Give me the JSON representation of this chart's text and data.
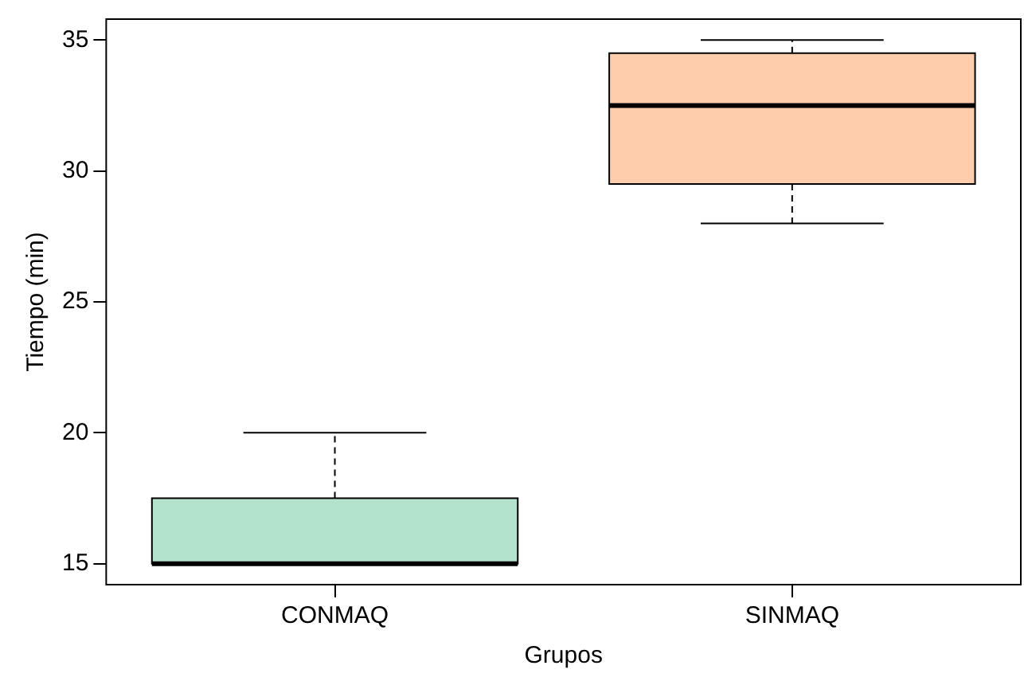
{
  "chart_data": {
    "type": "box",
    "xlabel": "Grupos",
    "ylabel": "Tiempo (min)",
    "categories": [
      "CONMAQ",
      "SINMAQ"
    ],
    "colors": [
      "#b3e2cd",
      "#fdcdac"
    ],
    "boxes": [
      {
        "low": 15,
        "q1": 15,
        "median": 15,
        "q3": 17.5,
        "high": 20
      },
      {
        "low": 28,
        "q1": 29.5,
        "median": 32.5,
        "q3": 34.5,
        "high": 35
      }
    ],
    "ylim": [
      14.2,
      35.8
    ],
    "yticks": [
      15,
      20,
      25,
      30,
      35
    ],
    "grid": false,
    "legend": false
  }
}
